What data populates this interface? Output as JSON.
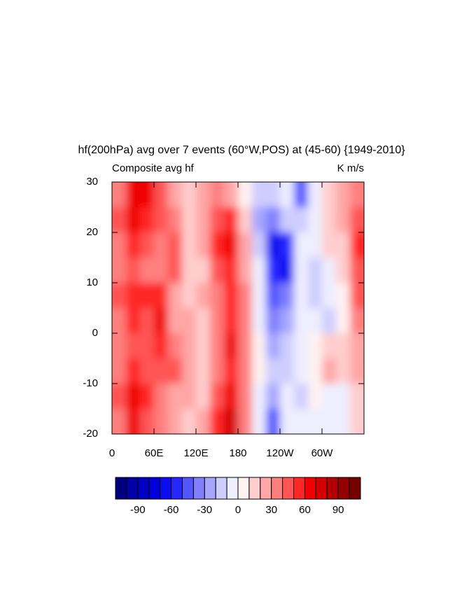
{
  "chart_data": {
    "type": "contour",
    "title": "hf(200hPa) avg over 7 events (60°W,POS) at (45-60) {1949-2010}",
    "subtitle_left": "Composite avg hf",
    "subtitle_right": "K m/s",
    "xlim": [
      0,
      360
    ],
    "xticks": [
      0,
      {
        "value": 60,
        "label": "60E"
      },
      {
        "value": 120,
        "label": "120E"
      },
      180,
      {
        "value": 240,
        "label": "120W"
      },
      {
        "value": 300,
        "label": "60W"
      }
    ],
    "ylim": [
      -20,
      30
    ],
    "yticks": [
      -20,
      -10,
      0,
      10,
      20,
      30
    ],
    "x": [
      10,
      30,
      50,
      70,
      90,
      110,
      130,
      150,
      170,
      190,
      210,
      230,
      250,
      270,
      290,
      310,
      330,
      350
    ],
    "y": [
      27.5,
      22.5,
      17.5,
      12.5,
      7.5,
      2.5,
      -2.5,
      -7.5,
      -12.5,
      -17.5
    ],
    "z": [
      [
        30,
        60,
        60,
        40,
        20,
        10,
        20,
        30,
        20,
        5,
        -20,
        -20,
        -10,
        -50,
        -10,
        10,
        20,
        30
      ],
      [
        40,
        60,
        50,
        40,
        30,
        10,
        20,
        40,
        50,
        10,
        -30,
        -40,
        -20,
        -20,
        -10,
        10,
        20,
        40
      ],
      [
        30,
        50,
        40,
        30,
        40,
        10,
        20,
        50,
        60,
        20,
        -20,
        -70,
        -60,
        -10,
        -10,
        10,
        10,
        50
      ],
      [
        30,
        40,
        30,
        30,
        40,
        10,
        10,
        40,
        50,
        20,
        -10,
        -60,
        -70,
        -10,
        -20,
        -10,
        10,
        40
      ],
      [
        40,
        50,
        50,
        50,
        20,
        10,
        20,
        30,
        50,
        30,
        -10,
        -50,
        -40,
        -10,
        -20,
        -10,
        0,
        40
      ],
      [
        30,
        50,
        40,
        60,
        20,
        20,
        10,
        30,
        50,
        30,
        -10,
        -40,
        -30,
        -10,
        -10,
        -20,
        0,
        30
      ],
      [
        30,
        40,
        40,
        50,
        30,
        20,
        10,
        30,
        60,
        30,
        0,
        -30,
        -20,
        -10,
        0,
        10,
        10,
        20
      ],
      [
        30,
        50,
        40,
        40,
        40,
        20,
        10,
        30,
        50,
        30,
        0,
        -20,
        -20,
        -10,
        0,
        20,
        10,
        20
      ],
      [
        40,
        60,
        50,
        30,
        20,
        20,
        10,
        40,
        60,
        30,
        -10,
        -30,
        -10,
        -20,
        0,
        -10,
        -10,
        10
      ],
      [
        30,
        60,
        40,
        30,
        20,
        10,
        20,
        50,
        70,
        30,
        -10,
        -50,
        -10,
        -10,
        -10,
        -10,
        -10,
        10
      ]
    ],
    "levels": [
      -100,
      -90,
      -80,
      -70,
      -60,
      -50,
      -40,
      -30,
      -20,
      -10,
      0,
      10,
      20,
      30,
      40,
      50,
      60,
      70,
      80,
      90,
      100
    ],
    "colors": [
      "#00007f",
      "#0000a6",
      "#0000c4",
      "#0000dc",
      "#0c0cf0",
      "#2626ff",
      "#5555ff",
      "#7f7fff",
      "#a6a6ff",
      "#cdcdff",
      "#eeeeff",
      "#fff2f2",
      "#ffcdcd",
      "#ffa6a6",
      "#ff7f7f",
      "#ff5555",
      "#ff2626",
      "#f00000",
      "#d40000",
      "#b40000",
      "#940000",
      "#760000"
    ],
    "colorbar_ticks": [
      -90,
      -60,
      -30,
      0,
      30,
      60,
      90
    ]
  }
}
